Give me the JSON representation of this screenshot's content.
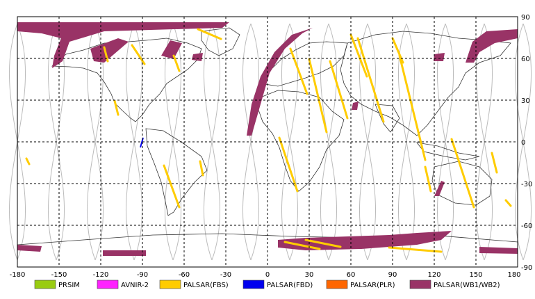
{
  "map": {
    "x_ticks": [
      "-180",
      "-150",
      "-120",
      "-90",
      "-60",
      "-30",
      "0",
      "30",
      "60",
      "90",
      "120",
      "150",
      "180"
    ],
    "y_ticks": [
      "90",
      "60",
      "30",
      "0",
      "-30",
      "-60",
      "-90"
    ],
    "x_range": [
      -180,
      180
    ],
    "y_range": [
      -90,
      90
    ],
    "grid": "dashed"
  },
  "legend": {
    "items": [
      {
        "label": "PRSIM",
        "color": "#99cc11"
      },
      {
        "label": "AVNIR-2",
        "color": "#ff22ff"
      },
      {
        "label": "PALSAR(FBS)",
        "color": "#ffcc00"
      },
      {
        "label": "PALSAR(FBD)",
        "color": "#0000ee"
      },
      {
        "label": "PALSAR(PLR)",
        "color": "#ff6600"
      },
      {
        "label": "PALSAR(WB1/WB2)",
        "color": "#993366"
      }
    ]
  },
  "colors": {
    "orbit_tracks": "#bbbbbb",
    "coastline": "#333333",
    "grid": "#000000"
  }
}
